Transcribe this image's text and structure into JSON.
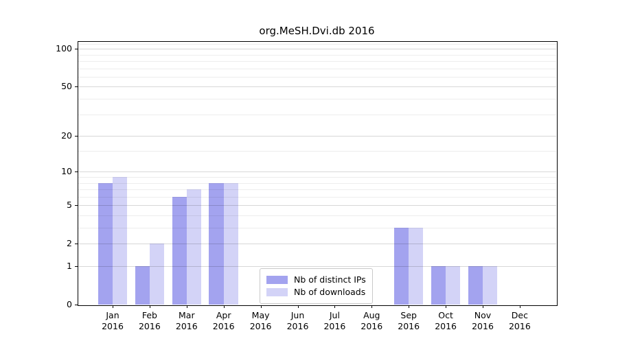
{
  "title": "org.MeSH.Dvi.db 2016",
  "chart_data": {
    "type": "bar",
    "title": "org.MeSH.Dvi.db 2016",
    "categories": [
      "Jan 2016",
      "Feb 2016",
      "Mar 2016",
      "Apr 2016",
      "May 2016",
      "Jun 2016",
      "Jul 2016",
      "Aug 2016",
      "Sep 2016",
      "Oct 2016",
      "Nov 2016",
      "Dec 2016"
    ],
    "series": [
      {
        "name": "Nb of distinct IPs",
        "color": "#a3a3ef",
        "values": [
          8,
          1,
          6,
          8,
          0,
          0,
          0,
          0,
          3,
          1,
          1,
          0
        ]
      },
      {
        "name": "Nb of downloads",
        "color": "#d3d3f7",
        "values": [
          9,
          2,
          7,
          8,
          0,
          0,
          0,
          0,
          3,
          1,
          1,
          0
        ]
      }
    ],
    "yscale": "log1p",
    "ylim": [
      0,
      115
    ],
    "y_major_ticks": [
      0,
      1,
      2,
      5,
      10,
      20,
      50,
      100
    ],
    "y_minor_gridlines": [
      3,
      4,
      6,
      7,
      8,
      9,
      15,
      30,
      40,
      60,
      70,
      80,
      90,
      110
    ],
    "grid": "horizontal, drawn over bars",
    "legend_position": "lower center inside plot"
  },
  "colors": {
    "background": "#ffffff",
    "spine": "#000000",
    "major_grid": "#d8d8d8",
    "minor_grid": "#ededed",
    "text": "#000000"
  }
}
